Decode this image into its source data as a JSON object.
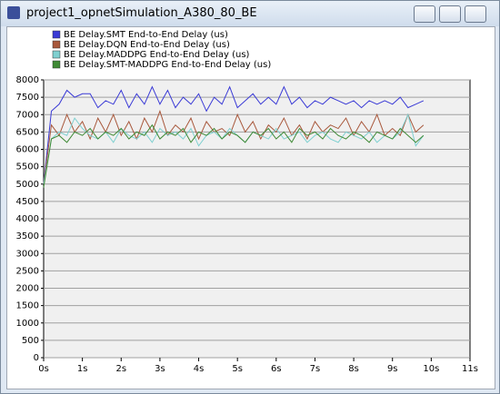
{
  "window": {
    "title": "project1_opnetSimulation_A380_80_BE"
  },
  "chart_data": {
    "type": "line",
    "x": [
      0,
      0.2,
      0.4,
      0.6,
      0.8,
      1.0,
      1.2,
      1.4,
      1.6,
      1.8,
      2.0,
      2.2,
      2.4,
      2.6,
      2.8,
      3.0,
      3.2,
      3.4,
      3.6,
      3.8,
      4.0,
      4.2,
      4.4,
      4.6,
      4.8,
      5.0,
      5.2,
      5.4,
      5.6,
      5.8,
      6.0,
      6.2,
      6.4,
      6.6,
      6.8,
      7.0,
      7.2,
      7.4,
      7.6,
      7.8,
      8.0,
      8.2,
      8.4,
      8.6,
      8.8,
      9.0,
      9.2,
      9.4,
      9.6,
      9.8
    ],
    "series": [
      {
        "name": "BE Delay.SMT End-to-End Delay (us)",
        "color": "#3b3bd6",
        "values": [
          5000,
          7100,
          7300,
          7700,
          7500,
          7600,
          7600,
          7200,
          7400,
          7300,
          7700,
          7200,
          7600,
          7300,
          7800,
          7300,
          7700,
          7200,
          7500,
          7300,
          7600,
          7100,
          7500,
          7300,
          7800,
          7200,
          7400,
          7600,
          7300,
          7500,
          7300,
          7800,
          7300,
          7500,
          7200,
          7400,
          7300,
          7500,
          7400,
          7300,
          7400,
          7200,
          7400,
          7300,
          7400,
          7300,
          7500,
          7200,
          7300,
          7400
        ]
      },
      {
        "name": "BE Delay.DQN End-to-End Delay (us)",
        "color": "#a8583c",
        "values": [
          5000,
          6700,
          6400,
          7000,
          6500,
          6800,
          6300,
          6900,
          6500,
          7000,
          6400,
          6800,
          6300,
          6900,
          6500,
          7100,
          6400,
          6700,
          6500,
          6900,
          6300,
          6800,
          6500,
          6600,
          6400,
          7000,
          6500,
          6800,
          6300,
          6700,
          6500,
          6900,
          6400,
          6700,
          6300,
          6800,
          6500,
          6700,
          6600,
          6900,
          6400,
          6800,
          6500,
          7000,
          6400,
          6600,
          6400,
          7000,
          6500,
          6700
        ]
      },
      {
        "name": "BE Delay.MADDPG End-to-End Delay (us)",
        "color": "#7fd0d0",
        "values": [
          5000,
          6300,
          6500,
          6400,
          6900,
          6600,
          6400,
          6300,
          6500,
          6200,
          6600,
          6400,
          6300,
          6500,
          6200,
          6600,
          6400,
          6500,
          6300,
          6600,
          6100,
          6400,
          6500,
          6300,
          6600,
          6400,
          6200,
          6500,
          6400,
          6300,
          6600,
          6300,
          6400,
          6500,
          6200,
          6400,
          6500,
          6300,
          6200,
          6500,
          6400,
          6300,
          6500,
          6200,
          6400,
          6300,
          6500,
          7000,
          6100,
          6400
        ]
      },
      {
        "name": "BE Delay.SMT-MADDPG End-to-End Delay (us)",
        "color": "#3f8a35",
        "values": [
          4900,
          6300,
          6400,
          6200,
          6500,
          6400,
          6600,
          6300,
          6500,
          6400,
          6600,
          6300,
          6500,
          6400,
          6700,
          6300,
          6500,
          6400,
          6600,
          6200,
          6500,
          6400,
          6600,
          6300,
          6500,
          6400,
          6200,
          6500,
          6400,
          6600,
          6300,
          6500,
          6200,
          6600,
          6400,
          6500,
          6300,
          6600,
          6400,
          6300,
          6500,
          6400,
          6200,
          6500,
          6400,
          6300,
          6600,
          6400,
          6200,
          6400
        ]
      }
    ],
    "xlim": [
      0,
      11
    ],
    "xticks": [
      {
        "value": 0,
        "label": "0s"
      },
      {
        "value": 1,
        "label": "1s"
      },
      {
        "value": 2,
        "label": "2s"
      },
      {
        "value": 3,
        "label": "3s"
      },
      {
        "value": 4,
        "label": "4s"
      },
      {
        "value": 5,
        "label": "5s"
      },
      {
        "value": 6,
        "label": "6s"
      },
      {
        "value": 7,
        "label": "7s"
      },
      {
        "value": 8,
        "label": "8s"
      },
      {
        "value": 9,
        "label": "9s"
      },
      {
        "value": 10,
        "label": "10s"
      },
      {
        "value": 11,
        "label": "11s"
      }
    ],
    "ylim": [
      0,
      8000
    ],
    "yticks": [
      0,
      500,
      1000,
      1500,
      2000,
      2500,
      3000,
      3500,
      4000,
      4500,
      5000,
      5500,
      6000,
      6500,
      7000,
      7500,
      8000
    ],
    "grid": true
  }
}
